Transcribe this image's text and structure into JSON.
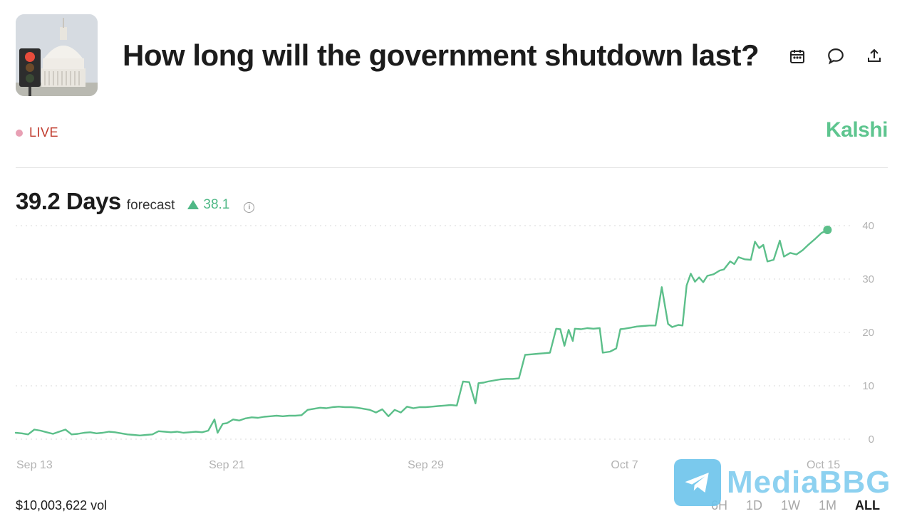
{
  "header": {
    "title": "How long will the government shutdown last?",
    "thumbnail_icon": "capitol-traffic-light-image",
    "icons": [
      "calendar-icon",
      "comment-icon",
      "share-icon"
    ]
  },
  "status": {
    "live_label": "LIVE",
    "brand": "Kalshi"
  },
  "summary": {
    "value": "39.2 Days",
    "label": "forecast",
    "delta": "38.1",
    "info_glyph": "i"
  },
  "footer": {
    "volume": "$10,003,622 vol",
    "ranges": [
      "6H",
      "1D",
      "1W",
      "1M",
      "ALL"
    ],
    "active_range": "ALL"
  },
  "watermark": {
    "text": "MediaBBG"
  },
  "colors": {
    "accent": "#5ec58f",
    "line": "#5cbf8a",
    "live_red": "#c0392b",
    "grid": "#d8d8d8"
  },
  "chart_data": {
    "type": "line",
    "title": "",
    "xlabel": "",
    "ylabel": "",
    "ylim": [
      0,
      40
    ],
    "yticks": [
      0,
      10,
      20,
      30,
      40
    ],
    "xticks": [
      {
        "date": "2025-09-13",
        "label": "Sep 13"
      },
      {
        "date": "2025-09-21",
        "label": "Sep 21"
      },
      {
        "date": "2025-09-29",
        "label": "Sep 29"
      },
      {
        "date": "2025-10-07",
        "label": "Oct 7"
      },
      {
        "date": "2025-10-15",
        "label": "Oct 15"
      }
    ],
    "grid": true,
    "legend": "none",
    "series": [
      {
        "points": [
          [
            "2025-09-12T12:00",
            1.2
          ],
          [
            "2025-09-12T18:00",
            1.1
          ],
          [
            "2025-09-13T00:00",
            0.9
          ],
          [
            "2025-09-13T06:00",
            1.8
          ],
          [
            "2025-09-13T12:00",
            1.6
          ],
          [
            "2025-09-13T18:00",
            1.3
          ],
          [
            "2025-09-14T00:00",
            1.0
          ],
          [
            "2025-09-14T06:00",
            1.4
          ],
          [
            "2025-09-14T12:00",
            1.8
          ],
          [
            "2025-09-14T18:00",
            0.9
          ],
          [
            "2025-09-15T00:00",
            1.0
          ],
          [
            "2025-09-15T06:00",
            1.2
          ],
          [
            "2025-09-15T12:00",
            1.3
          ],
          [
            "2025-09-15T18:00",
            1.1
          ],
          [
            "2025-09-16T00:00",
            1.2
          ],
          [
            "2025-09-16T06:00",
            1.4
          ],
          [
            "2025-09-16T12:00",
            1.3
          ],
          [
            "2025-09-16T18:00",
            1.1
          ],
          [
            "2025-09-17T00:00",
            0.9
          ],
          [
            "2025-09-17T06:00",
            0.8
          ],
          [
            "2025-09-17T12:00",
            0.7
          ],
          [
            "2025-09-17T18:00",
            0.8
          ],
          [
            "2025-09-18T00:00",
            0.9
          ],
          [
            "2025-09-18T06:00",
            1.5
          ],
          [
            "2025-09-18T12:00",
            1.4
          ],
          [
            "2025-09-18T18:00",
            1.3
          ],
          [
            "2025-09-19T00:00",
            1.4
          ],
          [
            "2025-09-19T06:00",
            1.2
          ],
          [
            "2025-09-19T12:00",
            1.3
          ],
          [
            "2025-09-19T18:00",
            1.4
          ],
          [
            "2025-09-20T00:00",
            1.3
          ],
          [
            "2025-09-20T06:00",
            1.6
          ],
          [
            "2025-09-20T12:00",
            3.7
          ],
          [
            "2025-09-20T15:00",
            1.2
          ],
          [
            "2025-09-20T20:00",
            2.9
          ],
          [
            "2025-09-21T00:00",
            3.0
          ],
          [
            "2025-09-21T06:00",
            3.7
          ],
          [
            "2025-09-21T12:00",
            3.5
          ],
          [
            "2025-09-21T18:00",
            3.9
          ],
          [
            "2025-09-22T00:00",
            4.1
          ],
          [
            "2025-09-22T06:00",
            4.0
          ],
          [
            "2025-09-22T12:00",
            4.2
          ],
          [
            "2025-09-22T18:00",
            4.3
          ],
          [
            "2025-09-23T00:00",
            4.4
          ],
          [
            "2025-09-23T06:00",
            4.3
          ],
          [
            "2025-09-23T12:00",
            4.4
          ],
          [
            "2025-09-23T18:00",
            4.4
          ],
          [
            "2025-09-24T00:00",
            4.5
          ],
          [
            "2025-09-24T06:00",
            5.5
          ],
          [
            "2025-09-24T12:00",
            5.7
          ],
          [
            "2025-09-24T18:00",
            5.9
          ],
          [
            "2025-09-25T00:00",
            5.8
          ],
          [
            "2025-09-25T06:00",
            6.0
          ],
          [
            "2025-09-25T12:00",
            6.1
          ],
          [
            "2025-09-25T18:00",
            6.0
          ],
          [
            "2025-09-26T00:00",
            6.0
          ],
          [
            "2025-09-26T06:00",
            5.9
          ],
          [
            "2025-09-26T12:00",
            5.7
          ],
          [
            "2025-09-26T18:00",
            5.5
          ],
          [
            "2025-09-27T00:00",
            5.0
          ],
          [
            "2025-09-27T06:00",
            5.6
          ],
          [
            "2025-09-27T12:00",
            4.3
          ],
          [
            "2025-09-27T18:00",
            5.5
          ],
          [
            "2025-09-28T00:00",
            5.0
          ],
          [
            "2025-09-28T06:00",
            6.1
          ],
          [
            "2025-09-28T12:00",
            5.8
          ],
          [
            "2025-09-28T18:00",
            6.0
          ],
          [
            "2025-09-29T00:00",
            6.0
          ],
          [
            "2025-09-29T06:00",
            6.1
          ],
          [
            "2025-09-29T12:00",
            6.2
          ],
          [
            "2025-09-29T18:00",
            6.3
          ],
          [
            "2025-09-30T00:00",
            6.4
          ],
          [
            "2025-09-30T06:00",
            6.3
          ],
          [
            "2025-09-30T12:00",
            10.8
          ],
          [
            "2025-09-30T18:00",
            10.7
          ],
          [
            "2025-10-01T00:00",
            6.7
          ],
          [
            "2025-10-01T03:00",
            10.5
          ],
          [
            "2025-10-01T08:00",
            10.6
          ],
          [
            "2025-10-01T12:00",
            10.8
          ],
          [
            "2025-10-01T18:00",
            11.0
          ],
          [
            "2025-10-02T00:00",
            11.2
          ],
          [
            "2025-10-02T06:00",
            11.3
          ],
          [
            "2025-10-02T12:00",
            11.3
          ],
          [
            "2025-10-02T18:00",
            11.4
          ],
          [
            "2025-10-03T00:00",
            15.8
          ],
          [
            "2025-10-03T06:00",
            15.9
          ],
          [
            "2025-10-03T12:00",
            16.0
          ],
          [
            "2025-10-03T18:00",
            16.1
          ],
          [
            "2025-10-04T00:00",
            16.2
          ],
          [
            "2025-10-04T06:00",
            20.7
          ],
          [
            "2025-10-04T10:00",
            20.6
          ],
          [
            "2025-10-04T14:00",
            17.5
          ],
          [
            "2025-10-04T18:00",
            20.5
          ],
          [
            "2025-10-04T22:00",
            18.4
          ],
          [
            "2025-10-05T00:00",
            20.7
          ],
          [
            "2025-10-05T06:00",
            20.6
          ],
          [
            "2025-10-05T12:00",
            20.8
          ],
          [
            "2025-10-05T18:00",
            20.7
          ],
          [
            "2025-10-06T00:00",
            20.8
          ],
          [
            "2025-10-06T03:00",
            16.2
          ],
          [
            "2025-10-06T10:00",
            16.4
          ],
          [
            "2025-10-06T16:00",
            17.0
          ],
          [
            "2025-10-06T20:00",
            20.6
          ],
          [
            "2025-10-07T00:00",
            20.7
          ],
          [
            "2025-10-07T06:00",
            20.9
          ],
          [
            "2025-10-07T12:00",
            21.1
          ],
          [
            "2025-10-07T18:00",
            21.2
          ],
          [
            "2025-10-08T00:00",
            21.3
          ],
          [
            "2025-10-08T06:00",
            21.3
          ],
          [
            "2025-10-08T12:00",
            28.5
          ],
          [
            "2025-10-08T18:00",
            21.6
          ],
          [
            "2025-10-08T22:00",
            21.0
          ],
          [
            "2025-10-09T04:00",
            21.4
          ],
          [
            "2025-10-09T08:00",
            21.3
          ],
          [
            "2025-10-09T12:00",
            28.8
          ],
          [
            "2025-10-09T16:00",
            31.0
          ],
          [
            "2025-10-09T20:00",
            29.5
          ],
          [
            "2025-10-10T00:00",
            30.3
          ],
          [
            "2025-10-10T04:00",
            29.4
          ],
          [
            "2025-10-10T08:00",
            30.6
          ],
          [
            "2025-10-10T14:00",
            30.9
          ],
          [
            "2025-10-10T20:00",
            31.6
          ],
          [
            "2025-10-11T00:00",
            31.8
          ],
          [
            "2025-10-11T06:00",
            33.3
          ],
          [
            "2025-10-11T10:00",
            32.8
          ],
          [
            "2025-10-11T14:00",
            34.1
          ],
          [
            "2025-10-11T20:00",
            33.7
          ],
          [
            "2025-10-12T02:00",
            33.6
          ],
          [
            "2025-10-12T06:00",
            37.0
          ],
          [
            "2025-10-12T10:00",
            35.8
          ],
          [
            "2025-10-12T14:00",
            36.4
          ],
          [
            "2025-10-12T18:00",
            33.3
          ],
          [
            "2025-10-13T00:00",
            33.6
          ],
          [
            "2025-10-13T06:00",
            37.2
          ],
          [
            "2025-10-13T10:00",
            34.2
          ],
          [
            "2025-10-13T16:00",
            34.9
          ],
          [
            "2025-10-13T22:00",
            34.6
          ],
          [
            "2025-10-14T04:00",
            35.4
          ],
          [
            "2025-10-14T10:00",
            36.5
          ],
          [
            "2025-10-14T16:00",
            37.5
          ],
          [
            "2025-10-14T22:00",
            38.6
          ],
          [
            "2025-10-15T04:00",
            39.2
          ]
        ]
      }
    ]
  }
}
